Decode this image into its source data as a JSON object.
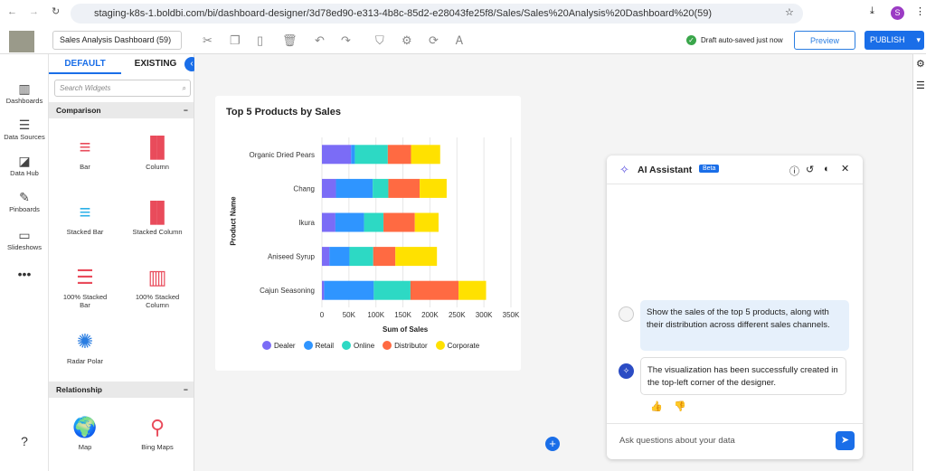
{
  "browser": {
    "url": "staging-k8s-1.boldbi.com/bi/dashboard-designer/3d78ed90-e313-4b8c-85d2-e28043fe25f8/Sales/Sales%20Analysis%20Dashboard%20(59)",
    "avatar": "S"
  },
  "toolbar": {
    "dashboard_name": "Sales Analysis Dashboard (59)",
    "status": "Draft auto-saved just now",
    "preview": "Preview",
    "publish": "PUBLISH"
  },
  "nav": [
    {
      "label": "Dashboards"
    },
    {
      "label": "Data Sources"
    },
    {
      "label": "Data Hub"
    },
    {
      "label": "Pinboards"
    },
    {
      "label": "Slideshows"
    }
  ],
  "panel": {
    "tabs": [
      "DEFAULT",
      "EXISTING"
    ],
    "search_placeholder": "Search Widgets",
    "sections": [
      "Comparison",
      "Relationship"
    ],
    "widgets": [
      "Bar",
      "Column",
      "Stacked Bar",
      "Stacked Column",
      "100% Stacked Bar",
      "100% Stacked Column",
      "Radar Polar",
      "Map",
      "Bing Maps"
    ]
  },
  "chart_data": {
    "type": "bar",
    "orientation": "horizontal",
    "stacked": true,
    "title": "Top 5 Products by Sales",
    "xlabel": "Sum of Sales",
    "ylabel": "Product Name",
    "categories": [
      "Organic Dried Pears",
      "Chang",
      "Ikura",
      "Aniseed Syrup",
      "Cajun Seasoning"
    ],
    "xlim": [
      0,
      350000
    ],
    "ticks": [
      "0",
      "50K",
      "100K",
      "150K",
      "200K",
      "250K",
      "300K",
      "350K"
    ],
    "legend": "bottom",
    "grid": true,
    "series": [
      {
        "name": "Dealer",
        "color": "#7b6cf6",
        "values": [
          54000,
          26000,
          25000,
          14000,
          4000
        ]
      },
      {
        "name": "Retail",
        "color": "#2f95ff",
        "values": [
          7000,
          68000,
          53000,
          37000,
          92000
        ]
      },
      {
        "name": "Online",
        "color": "#2dd9c4",
        "values": [
          61000,
          29000,
          36000,
          44000,
          68000
        ]
      },
      {
        "name": "Distributor",
        "color": "#ff6a42",
        "values": [
          43000,
          58000,
          58000,
          41000,
          89000
        ]
      },
      {
        "name": "Corporate",
        "color": "#ffe100",
        "values": [
          54000,
          50000,
          44000,
          77000,
          51000
        ]
      }
    ]
  },
  "ai": {
    "title": "AI Assistant",
    "badge": "Beta",
    "user_msg": "Show the sales of the top 5 products, along with their distribution across different sales channels.",
    "bot_msg": "The visualization has been successfully created in the top-left corner of the designer.",
    "input_placeholder": "Ask questions about your data"
  }
}
